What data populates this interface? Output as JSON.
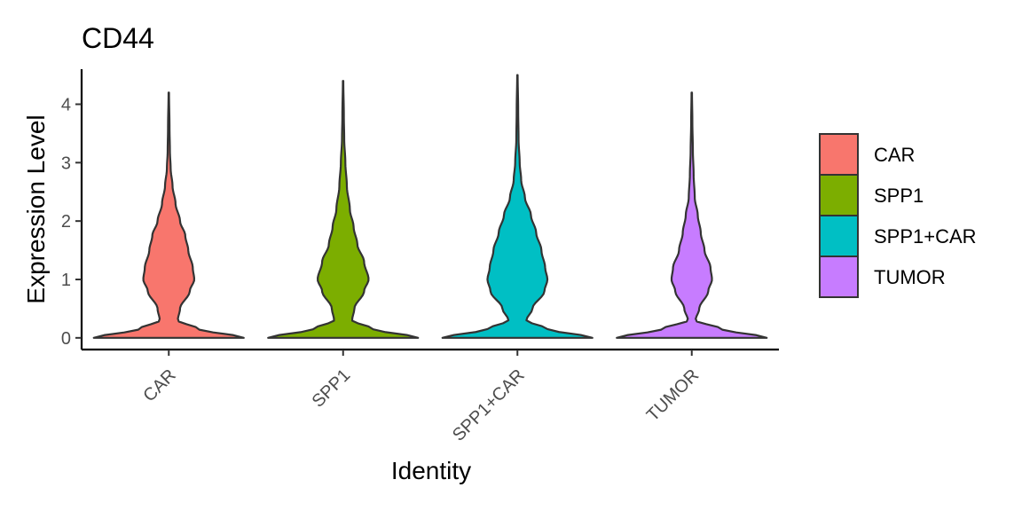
{
  "chart_data": {
    "type": "violin",
    "title": "CD44",
    "xlabel": "Identity",
    "ylabel": "Expression Level",
    "ylim": [
      -0.2,
      4.6
    ],
    "yticks": [
      0,
      1,
      2,
      3,
      4
    ],
    "categories": [
      "CAR",
      "SPP1",
      "SPP1+CAR",
      "TUMOR"
    ],
    "series": [
      {
        "name": "CAR",
        "color": "#F8766D",
        "max": 4.2,
        "density": [
          [
            0,
            1.0
          ],
          [
            0.15,
            0.4
          ],
          [
            0.3,
            0.12
          ],
          [
            0.5,
            0.15
          ],
          [
            0.8,
            0.28
          ],
          [
            1.0,
            0.34
          ],
          [
            1.2,
            0.32
          ],
          [
            1.5,
            0.26
          ],
          [
            1.75,
            0.22
          ],
          [
            2.0,
            0.15
          ],
          [
            2.3,
            0.09
          ],
          [
            2.6,
            0.05
          ],
          [
            2.9,
            0.025
          ],
          [
            3.2,
            0.015
          ],
          [
            3.6,
            0.01
          ],
          [
            4.2,
            0.003
          ]
        ]
      },
      {
        "name": "SPP1",
        "color": "#7CAE00",
        "max": 4.4,
        "density": [
          [
            0,
            1.0
          ],
          [
            0.15,
            0.4
          ],
          [
            0.3,
            0.12
          ],
          [
            0.5,
            0.15
          ],
          [
            0.8,
            0.28
          ],
          [
            1.0,
            0.34
          ],
          [
            1.3,
            0.28
          ],
          [
            1.6,
            0.19
          ],
          [
            1.9,
            0.14
          ],
          [
            2.2,
            0.09
          ],
          [
            2.6,
            0.05
          ],
          [
            3.0,
            0.03
          ],
          [
            3.4,
            0.015
          ],
          [
            3.8,
            0.01
          ],
          [
            4.4,
            0.003
          ]
        ]
      },
      {
        "name": "SPP1+CAR",
        "color": "#00BFC4",
        "max": 4.5,
        "density": [
          [
            0,
            1.0
          ],
          [
            0.15,
            0.4
          ],
          [
            0.3,
            0.12
          ],
          [
            0.5,
            0.2
          ],
          [
            0.8,
            0.36
          ],
          [
            1.0,
            0.4
          ],
          [
            1.2,
            0.37
          ],
          [
            1.5,
            0.32
          ],
          [
            1.8,
            0.25
          ],
          [
            2.1,
            0.18
          ],
          [
            2.4,
            0.1
          ],
          [
            2.7,
            0.05
          ],
          [
            3.0,
            0.03
          ],
          [
            3.4,
            0.015
          ],
          [
            3.9,
            0.01
          ],
          [
            4.5,
            0.003
          ]
        ]
      },
      {
        "name": "TUMOR",
        "color": "#C77CFF",
        "max": 4.2,
        "density": [
          [
            0,
            1.0
          ],
          [
            0.15,
            0.4
          ],
          [
            0.3,
            0.05
          ],
          [
            0.5,
            0.1
          ],
          [
            0.8,
            0.22
          ],
          [
            1.0,
            0.27
          ],
          [
            1.2,
            0.25
          ],
          [
            1.5,
            0.17
          ],
          [
            1.8,
            0.12
          ],
          [
            2.1,
            0.08
          ],
          [
            2.4,
            0.04
          ],
          [
            2.8,
            0.025
          ],
          [
            3.2,
            0.015
          ],
          [
            3.7,
            0.008
          ],
          [
            4.2,
            0.003
          ]
        ]
      }
    ],
    "legend": {
      "position": "right",
      "items": [
        "CAR",
        "SPP1",
        "SPP1+CAR",
        "TUMOR"
      ]
    },
    "grid": false
  }
}
